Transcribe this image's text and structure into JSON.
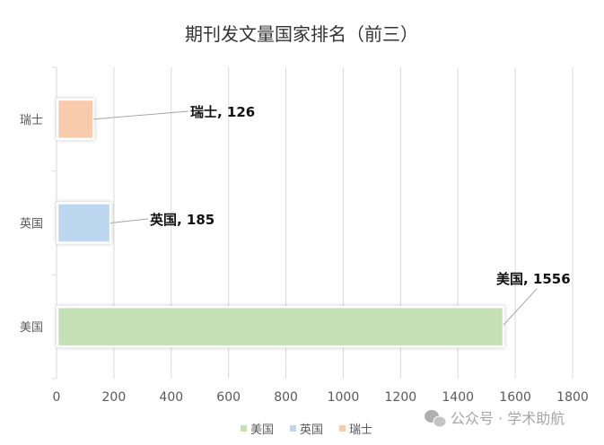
{
  "chart_data": {
    "type": "bar",
    "orientation": "horizontal",
    "title": "期刊发文量国家排名（前三）",
    "categories": [
      "美国",
      "英国",
      "瑞士"
    ],
    "values": [
      1556,
      185,
      126
    ],
    "colors": [
      "#c5e0b4",
      "#bdd7ee",
      "#f8cbad"
    ],
    "data_labels": [
      "美国, 1556",
      "英国, 185",
      "瑞士, 126"
    ],
    "xlim": [
      0,
      1800
    ],
    "xticks": [
      0,
      200,
      400,
      600,
      800,
      1000,
      1200,
      1400,
      1600,
      1800
    ],
    "grid": true,
    "legend": {
      "placement": "bottom",
      "entries": [
        "美国",
        "英国",
        "瑞士"
      ]
    }
  },
  "watermark": {
    "icon": "wechat-icon",
    "text": "公众号 · 学术助航"
  }
}
